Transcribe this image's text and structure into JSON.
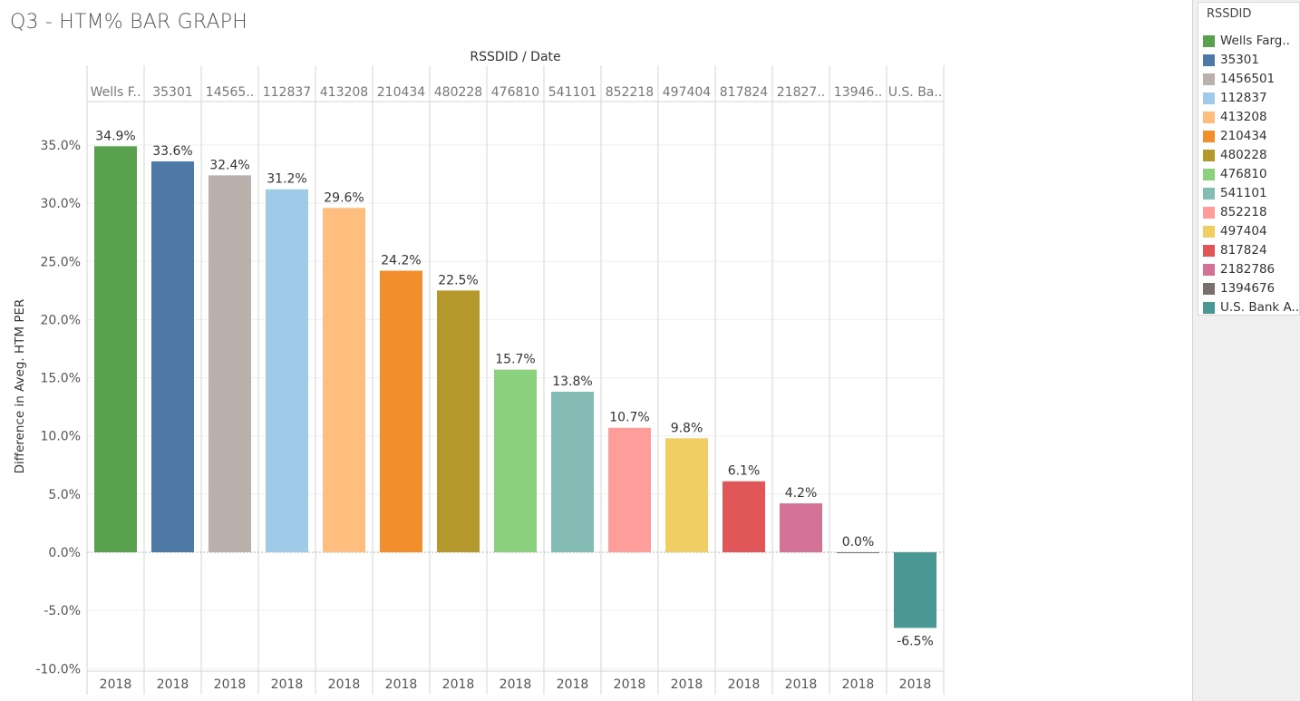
{
  "title": "Q3 - HTM% BAR GRAPH",
  "legend": {
    "title": "RSSDID",
    "items": [
      {
        "label": "Wells Farg..",
        "color": "#59a14f"
      },
      {
        "label": "35301",
        "color": "#4e79a7"
      },
      {
        "label": "1456501",
        "color": "#bab0ac"
      },
      {
        "label": "112837",
        "color": "#a0cbe8"
      },
      {
        "label": "413208",
        "color": "#ffbe7d"
      },
      {
        "label": "210434",
        "color": "#f28e2b"
      },
      {
        "label": "480228",
        "color": "#b6992d"
      },
      {
        "label": "476810",
        "color": "#8cd17d"
      },
      {
        "label": "541101",
        "color": "#86bcb6"
      },
      {
        "label": "852218",
        "color": "#ff9d9a"
      },
      {
        "label": "497404",
        "color": "#f1ce63"
      },
      {
        "label": "817824",
        "color": "#e15759"
      },
      {
        "label": "2182786",
        "color": "#d37295"
      },
      {
        "label": "1394676",
        "color": "#79706e"
      },
      {
        "label": "U.S. Bank A..",
        "color": "#499894"
      }
    ]
  },
  "chart_data": {
    "type": "bar",
    "title": "Q3 - HTM% BAR GRAPH",
    "header": "RSSDID  /  Date",
    "xlabel": "",
    "ylabel": "Difference in Aveg. HTM PER",
    "ylim": [
      -10,
      37.5
    ],
    "yticks": [
      35,
      30,
      25,
      20,
      15,
      10,
      5,
      0,
      -5,
      -10
    ],
    "ytick_labels": [
      "35.0%",
      "30.0%",
      "25.0%",
      "20.0%",
      "15.0%",
      "10.0%",
      "5.0%",
      "0.0%",
      "-5.0%",
      "-10.0%"
    ],
    "categories": [
      "Wells F..",
      "35301",
      "14565..",
      "112837",
      "413208",
      "210434",
      "480228",
      "476810",
      "541101",
      "852218",
      "497404",
      "817824",
      "21827..",
      "13946..",
      "U.S. Ba.."
    ],
    "sub_categories": [
      "2018",
      "2018",
      "2018",
      "2018",
      "2018",
      "2018",
      "2018",
      "2018",
      "2018",
      "2018",
      "2018",
      "2018",
      "2018",
      "2018",
      "2018"
    ],
    "values": [
      34.9,
      33.6,
      32.4,
      31.2,
      29.6,
      24.2,
      22.5,
      15.7,
      13.8,
      10.7,
      9.8,
      6.1,
      4.2,
      0.0,
      -6.5
    ],
    "data_labels": [
      "34.9%",
      "33.6%",
      "32.4%",
      "31.2%",
      "29.6%",
      "24.2%",
      "22.5%",
      "15.7%",
      "13.8%",
      "10.7%",
      "9.8%",
      "6.1%",
      "4.2%",
      "0.0%",
      "-6.5%"
    ],
    "colors": [
      "#59a14f",
      "#4e79a7",
      "#bab0ac",
      "#a0cbe8",
      "#ffbe7d",
      "#f28e2b",
      "#b6992d",
      "#8cd17d",
      "#86bcb6",
      "#ff9d9a",
      "#f1ce63",
      "#e15759",
      "#d37295",
      "#79706e",
      "#499894"
    ],
    "grid": true,
    "legend_position": "right"
  }
}
